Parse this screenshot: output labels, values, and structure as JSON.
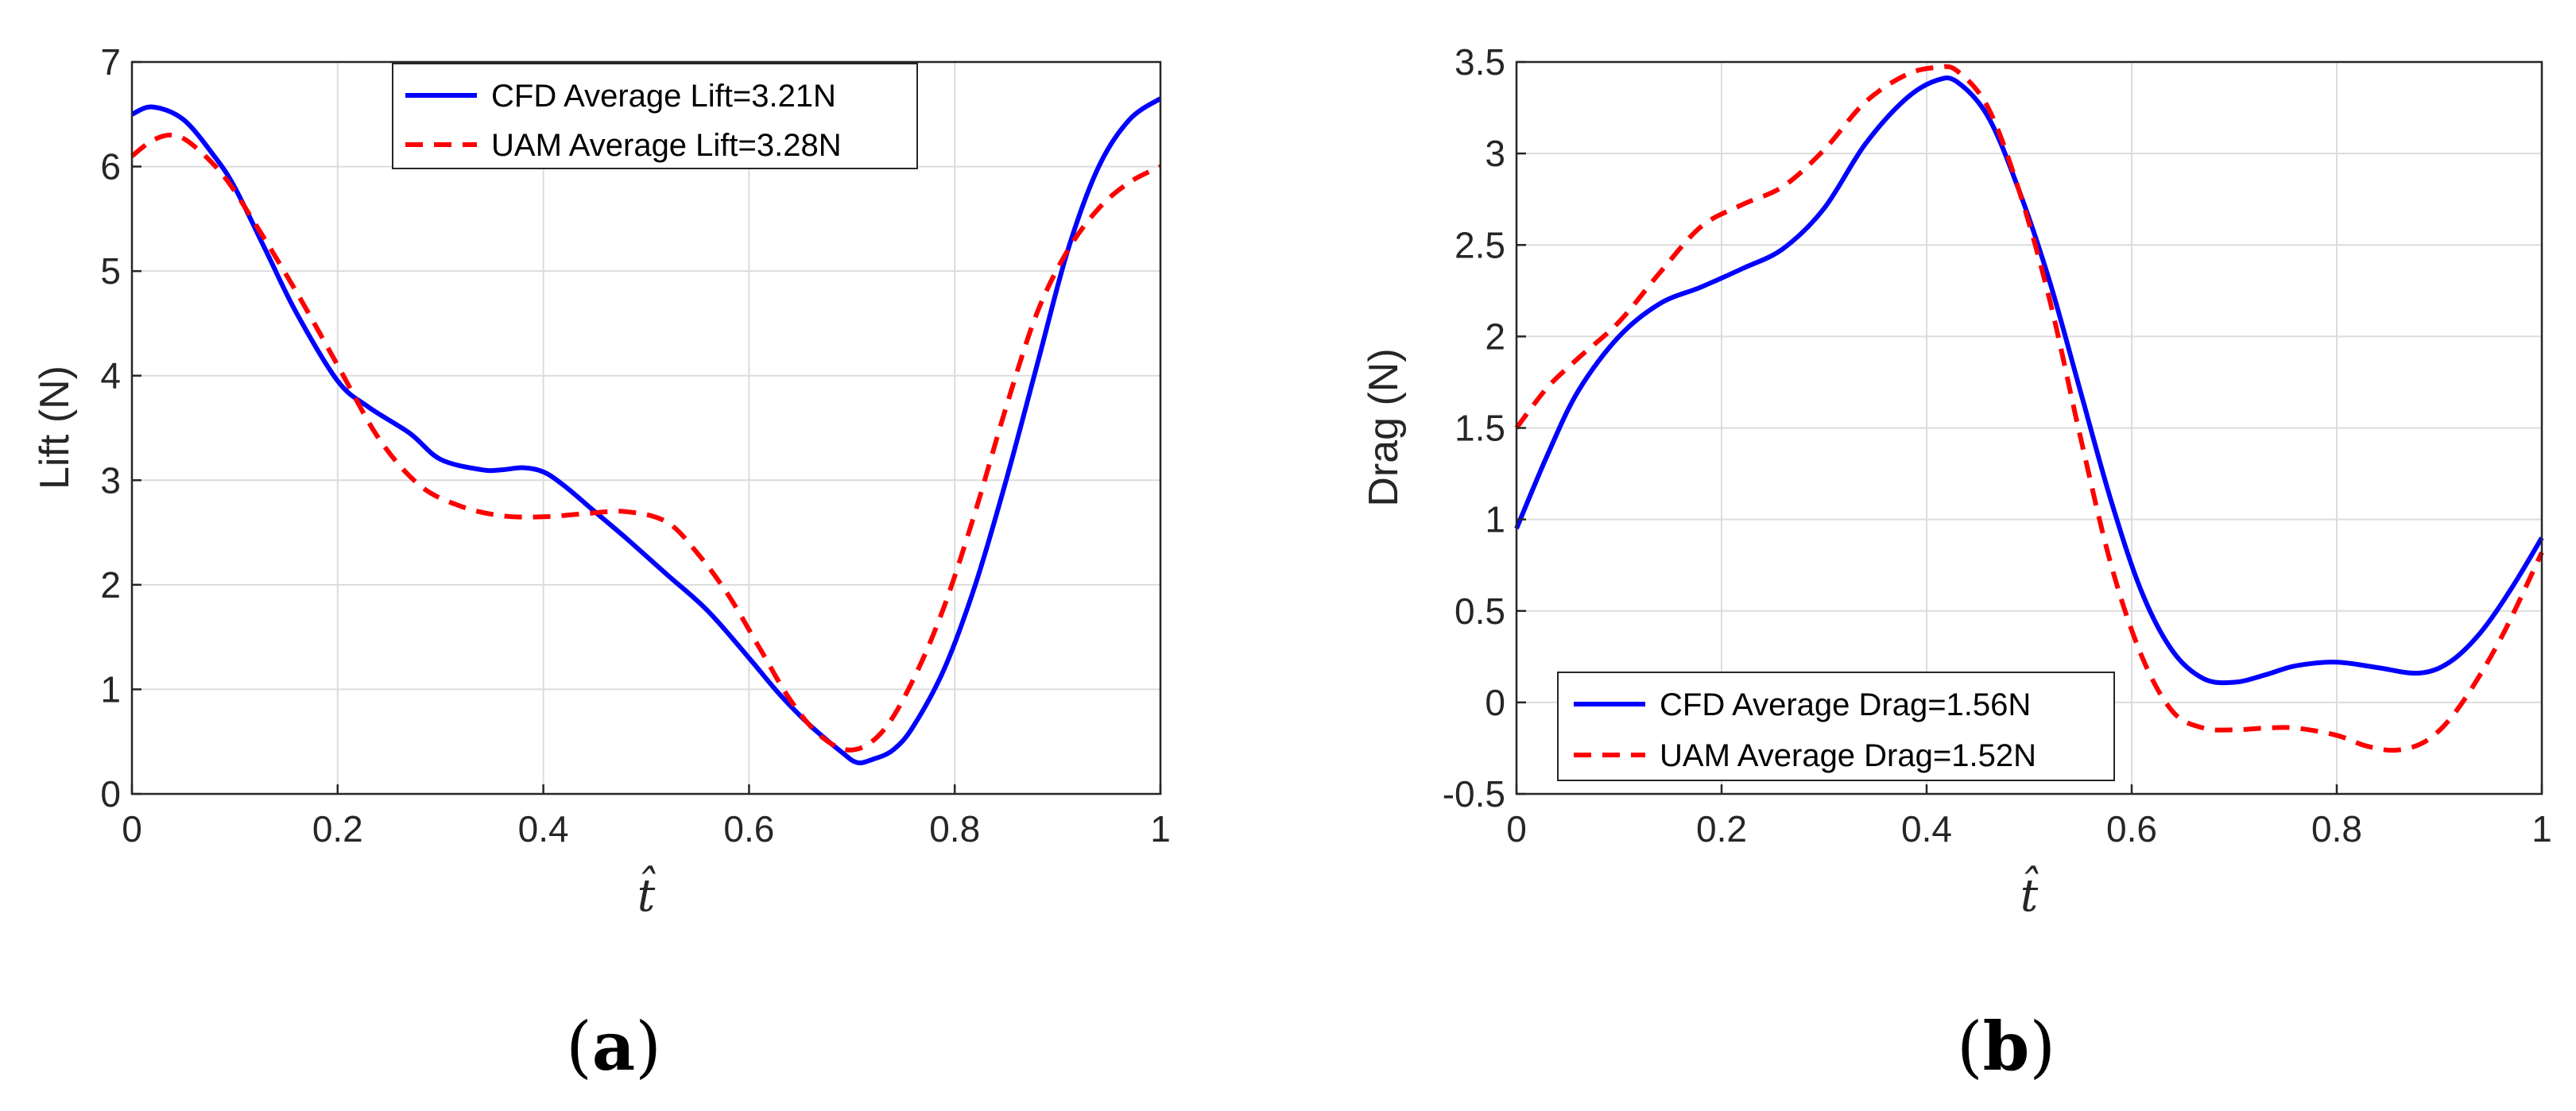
{
  "chart_data": [
    {
      "type": "line",
      "panel": "a",
      "panel_label": "a",
      "xlabel": "t̂",
      "ylabel": "Lift (N)",
      "xlim": [
        0,
        1
      ],
      "ylim": [
        0,
        7
      ],
      "xticks": [
        0,
        0.2,
        0.4,
        0.6,
        0.8,
        1
      ],
      "xtick_labels": [
        "0",
        "0.2",
        "0.4",
        "0.6",
        "0.8",
        "1"
      ],
      "yticks": [
        0,
        1,
        2,
        3,
        4,
        5,
        6,
        7
      ],
      "ytick_labels": [
        "0",
        "1",
        "2",
        "3",
        "4",
        "5",
        "6",
        "7"
      ],
      "grid": true,
      "legend_position": "top-center",
      "series": [
        {
          "name": "CFD Average Lift=3.21N",
          "color": "#0000ff",
          "style": "solid",
          "x": [
            0,
            0.02,
            0.05,
            0.08,
            0.1,
            0.13,
            0.16,
            0.2,
            0.23,
            0.27,
            0.3,
            0.34,
            0.36,
            0.38,
            0.4,
            0.42,
            0.45,
            0.48,
            0.52,
            0.56,
            0.6,
            0.63,
            0.66,
            0.69,
            0.705,
            0.72,
            0.74,
            0.76,
            0.79,
            0.82,
            0.85,
            0.88,
            0.91,
            0.94,
            0.97,
            1.0
          ],
          "y": [
            6.5,
            6.57,
            6.45,
            6.1,
            5.8,
            5.2,
            4.6,
            3.95,
            3.7,
            3.45,
            3.2,
            3.1,
            3.1,
            3.12,
            3.08,
            2.95,
            2.7,
            2.45,
            2.1,
            1.75,
            1.3,
            0.95,
            0.65,
            0.4,
            0.3,
            0.33,
            0.42,
            0.65,
            1.2,
            2.0,
            3.0,
            4.1,
            5.2,
            6.0,
            6.45,
            6.65
          ]
        },
        {
          "name": "UAM Average Lift=3.28N",
          "color": "#ff0000",
          "style": "dashed",
          "x": [
            0,
            0.02,
            0.04,
            0.06,
            0.09,
            0.12,
            0.16,
            0.2,
            0.24,
            0.28,
            0.32,
            0.36,
            0.4,
            0.44,
            0.48,
            0.52,
            0.55,
            0.58,
            0.61,
            0.64,
            0.67,
            0.7,
            0.73,
            0.76,
            0.79,
            0.82,
            0.85,
            0.88,
            0.91,
            0.94,
            0.97,
            1.0
          ],
          "y": [
            6.1,
            6.25,
            6.3,
            6.2,
            5.9,
            5.45,
            4.8,
            4.1,
            3.4,
            2.95,
            2.75,
            2.66,
            2.65,
            2.68,
            2.7,
            2.6,
            2.3,
            1.9,
            1.4,
            0.9,
            0.55,
            0.42,
            0.6,
            1.1,
            1.8,
            2.7,
            3.7,
            4.6,
            5.2,
            5.6,
            5.85,
            6.0
          ]
        }
      ]
    },
    {
      "type": "line",
      "panel": "b",
      "panel_label": "b",
      "xlabel": "t̂",
      "ylabel": "Drag (N)",
      "xlim": [
        0,
        1
      ],
      "ylim": [
        -0.5,
        3.5
      ],
      "xticks": [
        0,
        0.2,
        0.4,
        0.6,
        0.8,
        1
      ],
      "xtick_labels": [
        "0",
        "0.2",
        "0.4",
        "0.6",
        "0.8",
        "1"
      ],
      "yticks": [
        -0.5,
        0,
        0.5,
        1,
        1.5,
        2,
        2.5,
        3,
        3.5
      ],
      "ytick_labels": [
        "-0.5",
        "0",
        "0.5",
        "1",
        "1.5",
        "2",
        "2.5",
        "3",
        "3.5"
      ],
      "grid": true,
      "legend_position": "bottom-left",
      "series": [
        {
          "name": "CFD Average Drag=1.56N",
          "color": "#0000ff",
          "style": "solid",
          "x": [
            0,
            0.03,
            0.06,
            0.1,
            0.14,
            0.18,
            0.22,
            0.26,
            0.3,
            0.34,
            0.38,
            0.41,
            0.43,
            0.46,
            0.49,
            0.52,
            0.55,
            0.58,
            0.61,
            0.64,
            0.67,
            0.7,
            0.73,
            0.76,
            0.8,
            0.84,
            0.88,
            0.91,
            0.94,
            0.97,
            1.0
          ],
          "y": [
            0.95,
            1.35,
            1.7,
            2.0,
            2.18,
            2.27,
            2.37,
            2.48,
            2.7,
            3.05,
            3.3,
            3.4,
            3.39,
            3.2,
            2.8,
            2.3,
            1.7,
            1.1,
            0.6,
            0.28,
            0.13,
            0.11,
            0.15,
            0.2,
            0.22,
            0.19,
            0.16,
            0.22,
            0.38,
            0.62,
            0.9
          ]
        },
        {
          "name": "UAM Average Drag=1.52N",
          "color": "#ff0000",
          "style": "dashed",
          "x": [
            0,
            0.03,
            0.06,
            0.1,
            0.14,
            0.18,
            0.22,
            0.26,
            0.3,
            0.34,
            0.38,
            0.41,
            0.43,
            0.46,
            0.49,
            0.52,
            0.55,
            0.58,
            0.61,
            0.64,
            0.67,
            0.7,
            0.73,
            0.76,
            0.8,
            0.83,
            0.86,
            0.89,
            0.92,
            0.96,
            1.0
          ],
          "y": [
            1.5,
            1.72,
            1.88,
            2.08,
            2.35,
            2.6,
            2.72,
            2.82,
            3.02,
            3.28,
            3.43,
            3.47,
            3.45,
            3.25,
            2.8,
            2.2,
            1.45,
            0.75,
            0.25,
            -0.05,
            -0.14,
            -0.15,
            -0.14,
            -0.14,
            -0.18,
            -0.24,
            -0.26,
            -0.2,
            -0.02,
            0.35,
            0.82
          ]
        }
      ]
    }
  ]
}
